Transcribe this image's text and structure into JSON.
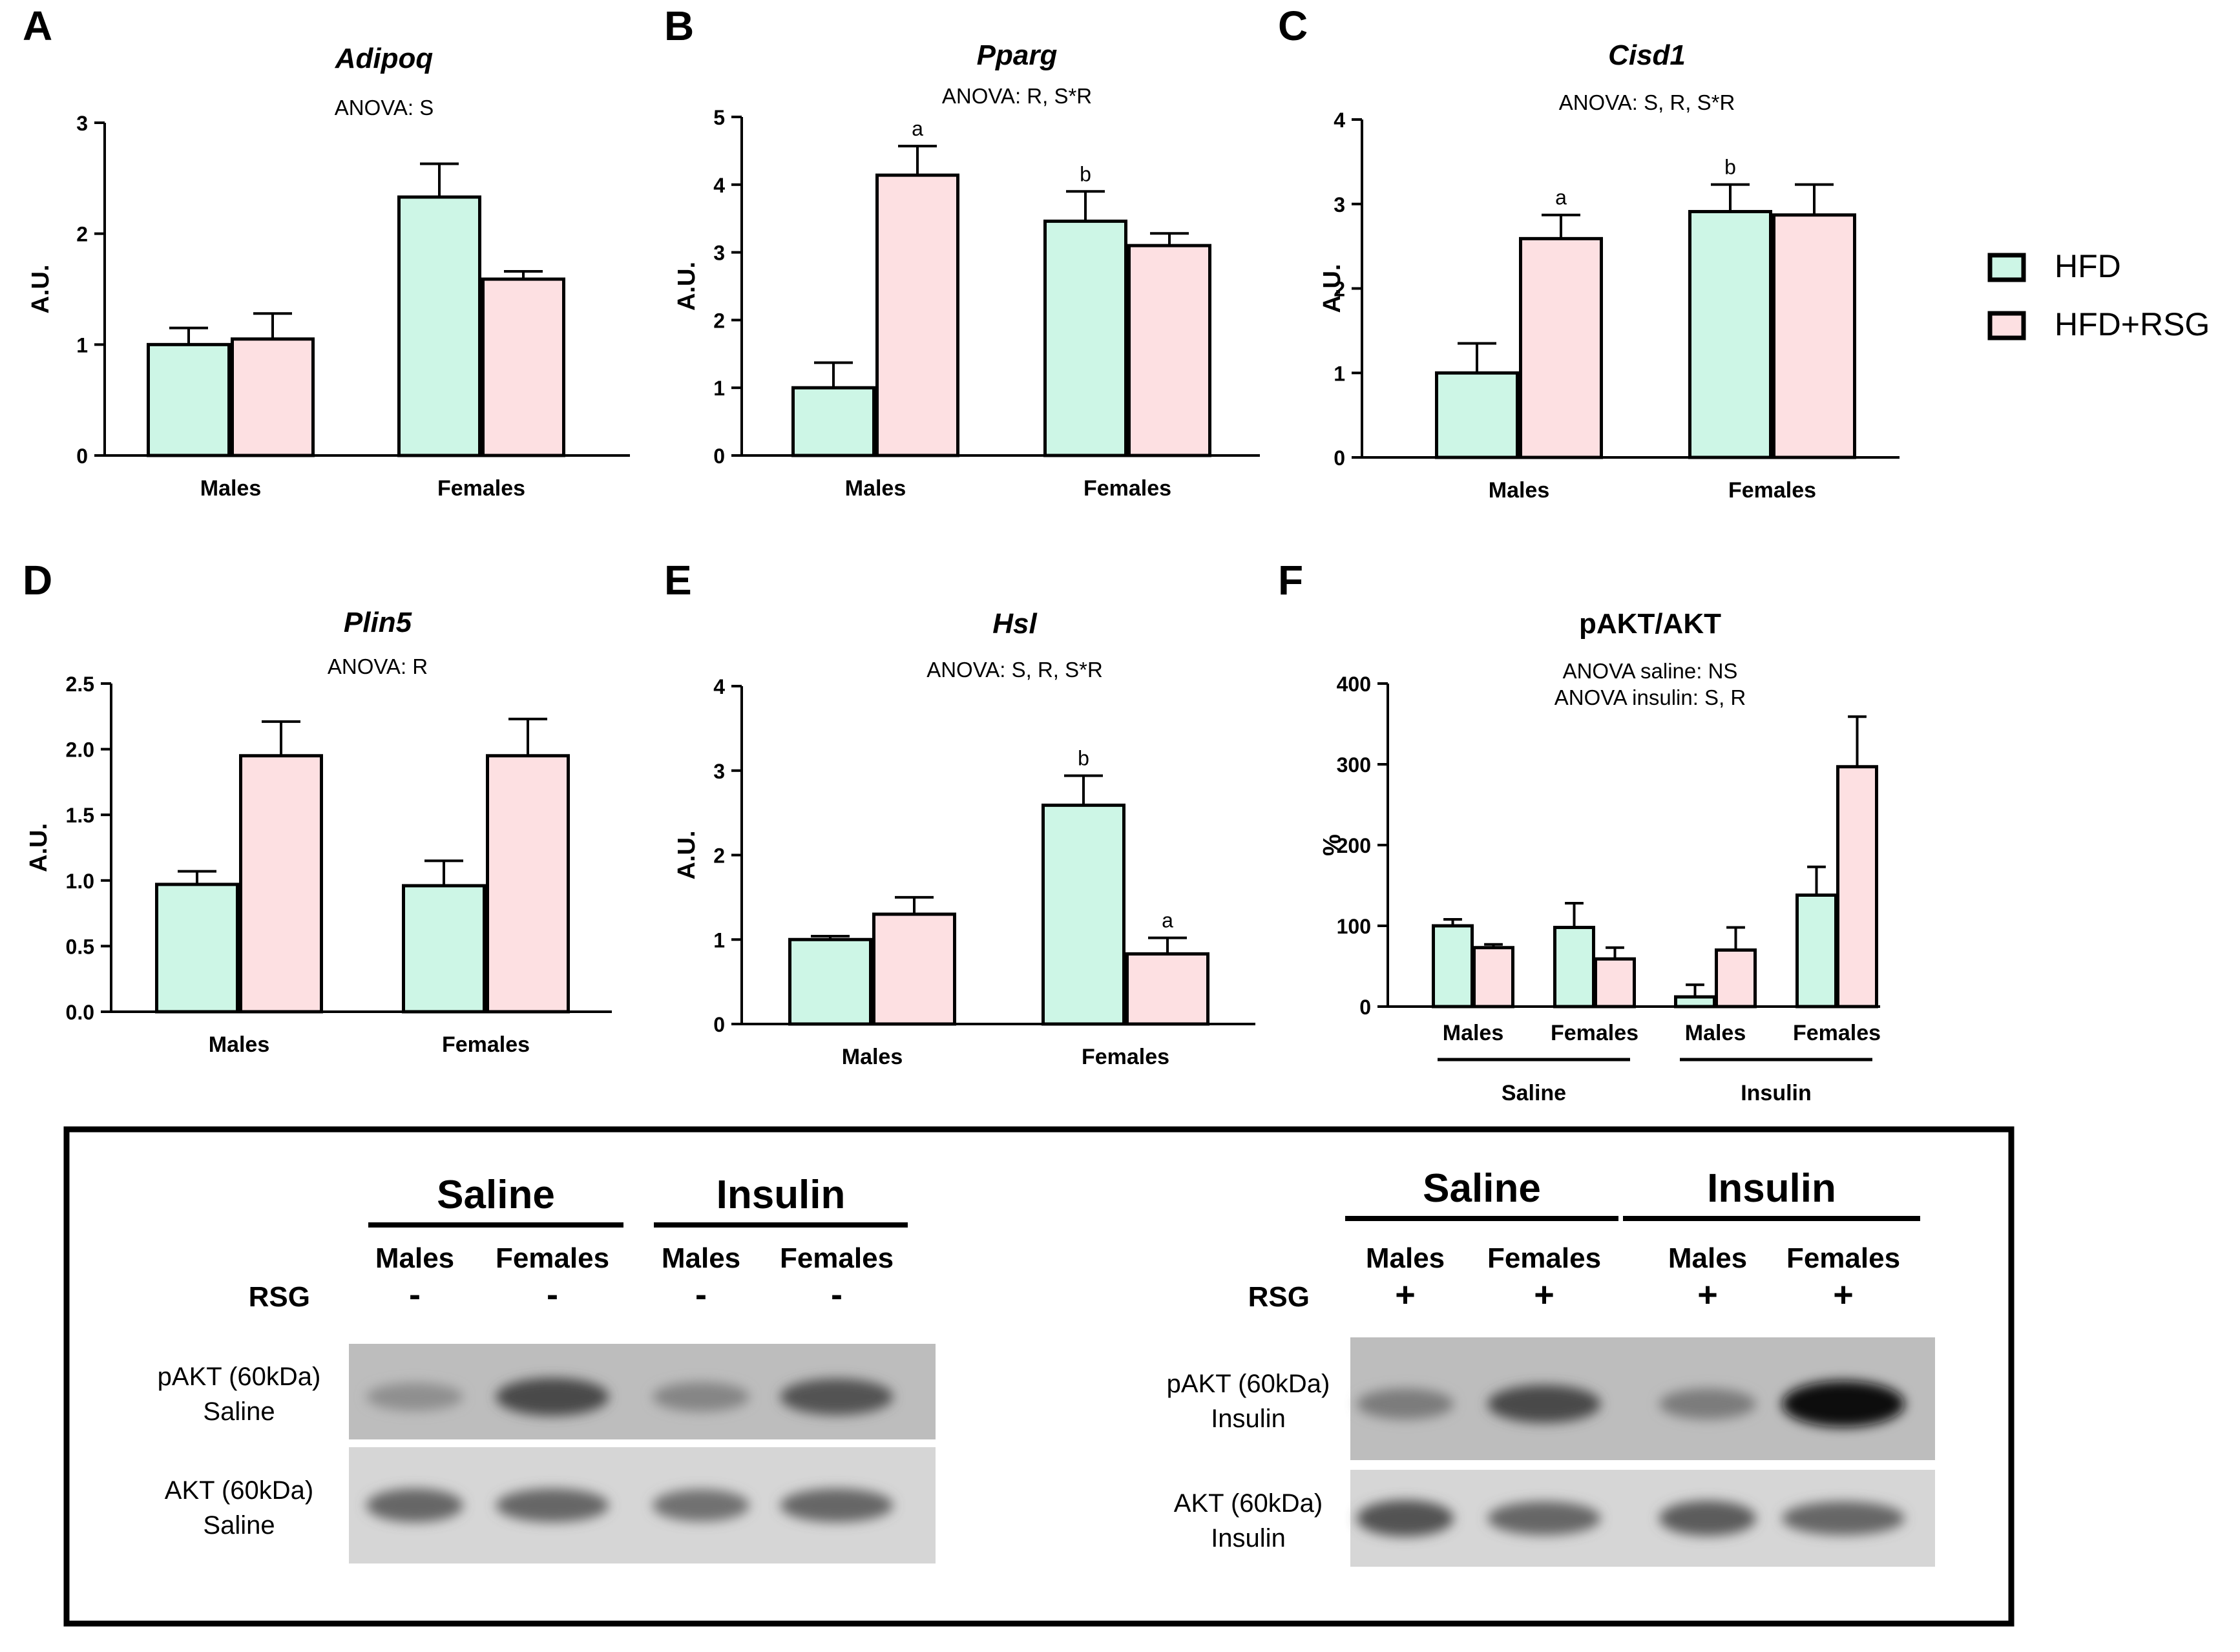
{
  "legend": {
    "items": [
      {
        "label": "HFD",
        "color": "#cdf6e6"
      },
      {
        "label": "HFD+RSG",
        "color": "#fde0e2"
      }
    ]
  },
  "chart_data": [
    {
      "panel": "A",
      "type": "bar",
      "title": "Adipoq",
      "subtitle": "ANOVA: S",
      "ylabel": "A.U.",
      "ylim": [
        0,
        3
      ],
      "yticks": [
        "0",
        "1",
        "2",
        "3"
      ],
      "categories": [
        "Males",
        "Females"
      ],
      "series": [
        {
          "name": "HFD",
          "values": [
            1.0,
            2.33
          ],
          "errors": [
            0.15,
            0.3
          ]
        },
        {
          "name": "HFD+RSG",
          "values": [
            1.05,
            1.59
          ],
          "errors": [
            0.23,
            0.07
          ]
        }
      ],
      "sig": []
    },
    {
      "panel": "B",
      "type": "bar",
      "title": "Pparg",
      "subtitle": "ANOVA: R, S*R",
      "ylabel": "A.U.",
      "ylim": [
        0,
        5
      ],
      "yticks": [
        "0",
        "1",
        "2",
        "3",
        "4",
        "5"
      ],
      "categories": [
        "Males",
        "Females"
      ],
      "series": [
        {
          "name": "HFD",
          "values": [
            1.0,
            3.46
          ],
          "errors": [
            0.37,
            0.44
          ]
        },
        {
          "name": "HFD+RSG",
          "values": [
            4.14,
            3.1
          ],
          "errors": [
            0.43,
            0.18
          ]
        }
      ],
      "sig": [
        {
          "series": 1,
          "category": 0,
          "label": "a"
        },
        {
          "series": 0,
          "category": 1,
          "label": "b"
        }
      ]
    },
    {
      "panel": "C",
      "type": "bar",
      "title": "Cisd1",
      "subtitle": "ANOVA: S, R, S*R",
      "ylabel": "A.U.",
      "ylim": [
        0,
        4
      ],
      "yticks": [
        "0",
        "1",
        "2",
        "3",
        "4"
      ],
      "categories": [
        "Males",
        "Females"
      ],
      "series": [
        {
          "name": "HFD",
          "values": [
            1.0,
            2.91
          ],
          "errors": [
            0.35,
            0.32
          ]
        },
        {
          "name": "HFD+RSG",
          "values": [
            2.59,
            2.87
          ],
          "errors": [
            0.28,
            0.36
          ]
        }
      ],
      "sig": [
        {
          "series": 1,
          "category": 0,
          "label": "a"
        },
        {
          "series": 0,
          "category": 1,
          "label": "b"
        }
      ]
    },
    {
      "panel": "D",
      "type": "bar",
      "title": "Plin5",
      "subtitle": "ANOVA: R",
      "ylabel": "A.U.",
      "ylim": [
        0,
        2.5
      ],
      "yticks": [
        "0.0",
        "0.5",
        "1.0",
        "1.5",
        "2.0",
        "2.5"
      ],
      "categories": [
        "Males",
        "Females"
      ],
      "series": [
        {
          "name": "HFD",
          "values": [
            0.97,
            0.96
          ],
          "errors": [
            0.1,
            0.19
          ]
        },
        {
          "name": "HFD+RSG",
          "values": [
            1.95,
            1.95
          ],
          "errors": [
            0.26,
            0.28
          ]
        }
      ],
      "sig": []
    },
    {
      "panel": "E",
      "type": "bar",
      "title": "Hsl",
      "subtitle": "ANOVA: S, R, S*R",
      "ylabel": "A.U.",
      "ylim": [
        0,
        4
      ],
      "yticks": [
        "0",
        "1",
        "2",
        "3",
        "4"
      ],
      "categories": [
        "Males",
        "Females"
      ],
      "series": [
        {
          "name": "HFD",
          "values": [
            1.0,
            2.59
          ],
          "errors": [
            0.04,
            0.35
          ]
        },
        {
          "name": "HFD+RSG",
          "values": [
            1.3,
            0.83
          ],
          "errors": [
            0.2,
            0.19
          ]
        }
      ],
      "sig": [
        {
          "series": 0,
          "category": 1,
          "label": "b"
        },
        {
          "series": 1,
          "category": 1,
          "label": "a"
        }
      ]
    },
    {
      "panel": "F",
      "type": "bar",
      "title": "pAKT/AKT",
      "subtitle": "ANOVA saline: NS",
      "subtitle2": "ANOVA insulin: S, R",
      "ylabel": "%",
      "ylim": [
        0,
        400
      ],
      "yticks": [
        "0",
        "100",
        "200",
        "300",
        "400"
      ],
      "categories": [
        "Males",
        "Females",
        "Males",
        "Females"
      ],
      "groups": [
        "Saline",
        "Insulin"
      ],
      "series": [
        {
          "name": "HFD",
          "values": [
            100,
            98,
            12,
            138
          ],
          "errors": [
            8,
            30,
            15,
            35
          ]
        },
        {
          "name": "HFD+RSG",
          "values": [
            73,
            59,
            70,
            297
          ],
          "errors": [
            4,
            14,
            28,
            62
          ]
        }
      ],
      "sig": []
    }
  ],
  "blots": [
    {
      "groups": [
        "Saline",
        "Insulin"
      ],
      "lanes": [
        "Males",
        "Females",
        "Males",
        "Females"
      ],
      "rsg_label": "RSG",
      "rsg": [
        "-",
        "-",
        "-",
        "-"
      ],
      "rows": [
        {
          "name": "pAKT (60kDa)",
          "condition": "Saline",
          "intensity": [
            0.35,
            0.7,
            0.4,
            0.65
          ]
        },
        {
          "name": "AKT (60kDa)",
          "condition": "Saline",
          "intensity": [
            0.55,
            0.55,
            0.5,
            0.55
          ]
        }
      ]
    },
    {
      "groups": [
        "Saline",
        "Insulin"
      ],
      "lanes": [
        "Males",
        "Females",
        "Males",
        "Females"
      ],
      "rsg_label": "RSG",
      "rsg": [
        "+",
        "+",
        "+",
        "+"
      ],
      "rows": [
        {
          "name": "pAKT (60kDa)",
          "condition": "Insulin",
          "intensity": [
            0.45,
            0.7,
            0.45,
            1.0
          ]
        },
        {
          "name": "AKT (60kDa)",
          "condition": "Insulin",
          "intensity": [
            0.65,
            0.55,
            0.6,
            0.55
          ]
        }
      ]
    }
  ]
}
